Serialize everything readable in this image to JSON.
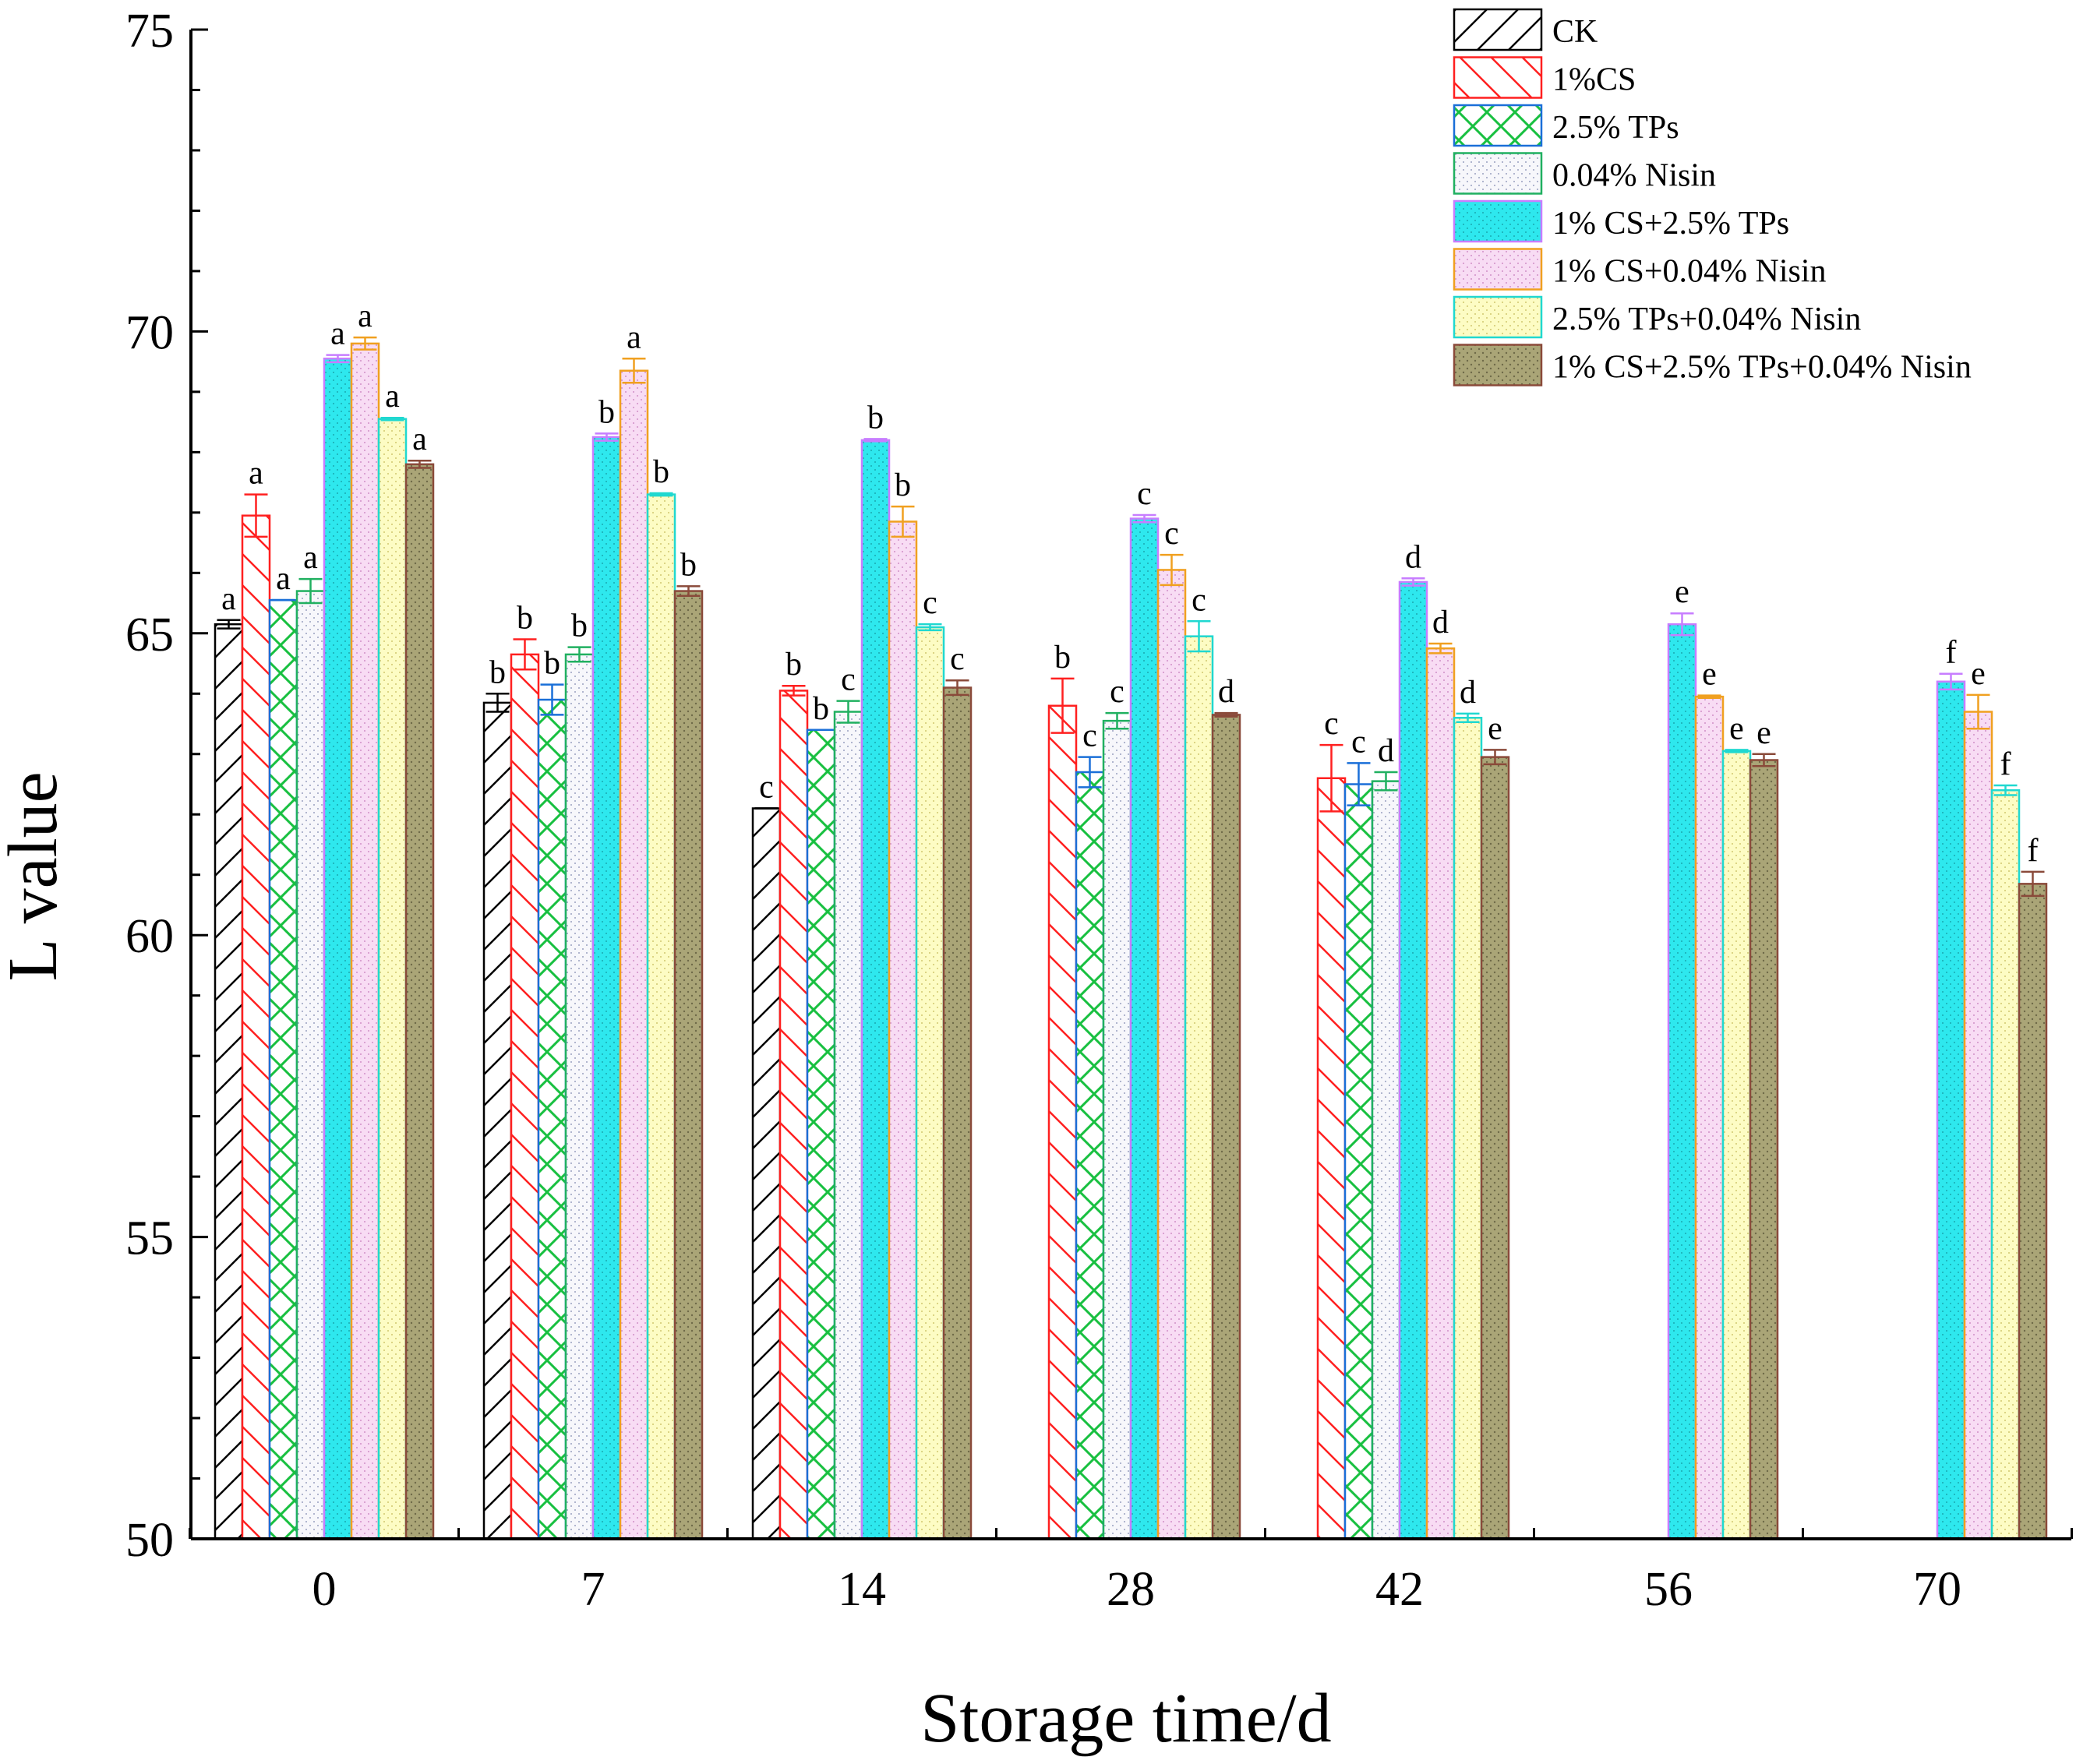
{
  "chart_data": {
    "type": "bar",
    "title": "",
    "xlabel": "Storage time/d",
    "ylabel": "L value",
    "ylim": [
      50,
      75
    ],
    "yticks": [
      50,
      55,
      60,
      65,
      70,
      75
    ],
    "categories": [
      "0",
      "7",
      "14",
      "28",
      "42",
      "56",
      "70"
    ],
    "series": [
      {
        "name": "CK",
        "color": "#000000",
        "fill": "#ffffff",
        "pattern": "diag-fwd",
        "values": [
          65.15,
          63.85,
          62.1,
          null,
          null,
          null,
          null
        ],
        "errors": [
          0.07,
          0.15,
          0,
          null,
          null,
          null,
          null
        ],
        "letters": [
          "a",
          "b",
          "c",
          null,
          null,
          null,
          null
        ]
      },
      {
        "name": "1%CS",
        "color": "#ff2020",
        "fill": "#ffffff",
        "pattern": "diag-back",
        "values": [
          66.95,
          64.65,
          64.05,
          63.8,
          62.6,
          null,
          null
        ],
        "errors": [
          0.35,
          0.25,
          0.08,
          0.45,
          0.55,
          null,
          null
        ],
        "letters": [
          "a",
          "b",
          "b",
          "b",
          "c",
          null,
          null
        ]
      },
      {
        "name": "2.5% TPs",
        "color": "#1a6fd8",
        "fill": "#ffffff",
        "pattern": "cross-green",
        "values": [
          65.55,
          63.9,
          63.4,
          62.7,
          62.5,
          null,
          null
        ],
        "errors": [
          0,
          0.25,
          0,
          0.25,
          0.35,
          null,
          null
        ],
        "letters": [
          "a",
          "b",
          "b",
          "c",
          "c",
          null,
          null
        ]
      },
      {
        "name": "0.04% Nisin",
        "color": "#20b060",
        "fill": "#f7f7fb",
        "pattern": "dots",
        "values": [
          65.7,
          64.65,
          63.7,
          63.55,
          62.55,
          null,
          null
        ],
        "errors": [
          0.2,
          0.12,
          0.18,
          0.13,
          0.15,
          null,
          null
        ],
        "letters": [
          "a",
          "b",
          "c",
          "c",
          "d",
          null,
          null
        ]
      },
      {
        "name": "1% CS+2.5% TPs",
        "color": "#c77dff",
        "fill": "#2ee8ee",
        "pattern": "dots",
        "values": [
          69.55,
          68.25,
          68.2,
          66.9,
          65.85,
          65.15,
          64.2
        ],
        "errors": [
          0.06,
          0.06,
          0.02,
          0.06,
          0.06,
          0.18,
          0.13
        ],
        "letters": [
          "a",
          "b",
          "b",
          "c",
          "d",
          "e",
          "f"
        ]
      },
      {
        "name": "1% CS+0.04% Nisin",
        "color": "#f0a020",
        "fill": "#f8dcf4",
        "pattern": "dots",
        "values": [
          69.8,
          69.35,
          66.85,
          66.05,
          64.75,
          63.95,
          63.7
        ],
        "errors": [
          0.1,
          0.2,
          0.25,
          0.25,
          0.08,
          0.02,
          0.28
        ],
        "letters": [
          "a",
          "a",
          "b",
          "c",
          "d",
          "e",
          "e"
        ]
      },
      {
        "name": "2.5% TPs+0.04% Nisin",
        "color": "#20d8d0",
        "fill": "#fdfcc4",
        "pattern": "dots",
        "values": [
          68.55,
          67.3,
          65.1,
          64.95,
          63.6,
          63.05,
          62.4
        ],
        "errors": [
          0.02,
          0.02,
          0.05,
          0.25,
          0.07,
          0.02,
          0.08
        ],
        "letters": [
          "a",
          "b",
          "c",
          "c",
          "d",
          "e",
          "f"
        ]
      },
      {
        "name": "1% CS+2.5% TPs+0.04% Nisin",
        "color": "#8a4a3a",
        "fill": "#aaa577",
        "pattern": "dots",
        "values": [
          67.8,
          65.7,
          64.1,
          63.65,
          62.95,
          62.9,
          60.85
        ],
        "errors": [
          0.06,
          0.08,
          0.12,
          0.03,
          0.12,
          0.1,
          0.2
        ],
        "letters": [
          "a",
          "b",
          "c",
          "d",
          "e",
          "e",
          "f"
        ]
      }
    ]
  }
}
